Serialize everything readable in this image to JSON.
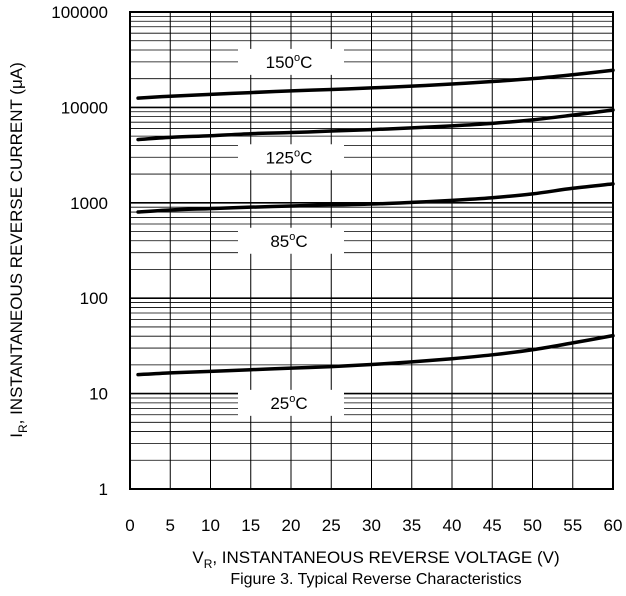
{
  "chart_data": {
    "type": "line",
    "title": "",
    "caption": "Figure 3. Typical Reverse Characteristics",
    "xlabel": {
      "main": "V",
      "sub": "R",
      "rest": ", INSTANTANEOUS REVERSE VOLTAGE (V)"
    },
    "ylabel": {
      "main": "I",
      "sub": "R",
      "rest": ", INSTANTANEOUS REVERSE CURRENT (μA)"
    },
    "xlim": [
      0,
      60
    ],
    "ylim": [
      1,
      100000
    ],
    "yscale": "log",
    "grid": true,
    "x_ticks": [
      0,
      5,
      10,
      15,
      20,
      25,
      30,
      35,
      40,
      45,
      50,
      55,
      60
    ],
    "y_ticks": [
      {
        "value": 1,
        "label": "1"
      },
      {
        "value": 10,
        "label": "10"
      },
      {
        "value": 100,
        "label": "100"
      },
      {
        "value": 1000,
        "label": "1000"
      },
      {
        "value": 10000,
        "label": "10000"
      },
      {
        "value": 100000,
        "label": "100000"
      }
    ],
    "series": [
      {
        "label": {
          "value": "150",
          "deg": "o",
          "unit": "C"
        },
        "label_at": {
          "x": 20,
          "y": 30000
        },
        "x": [
          1,
          5,
          10,
          15,
          20,
          25,
          30,
          35,
          40,
          45,
          50,
          55,
          60
        ],
        "y": [
          12500,
          13100,
          13700,
          14300,
          14900,
          15400,
          16000,
          16700,
          17600,
          18700,
          20000,
          22000,
          24500
        ]
      },
      {
        "label": {
          "value": "125",
          "deg": "o",
          "unit": "C"
        },
        "label_at": {
          "x": 20,
          "y": 3000
        },
        "x": [
          1,
          5,
          10,
          15,
          20,
          25,
          30,
          35,
          40,
          45,
          50,
          55,
          60
        ],
        "y": [
          4600,
          4850,
          5050,
          5300,
          5450,
          5650,
          5850,
          6100,
          6400,
          6800,
          7400,
          8300,
          9400
        ]
      },
      {
        "label": {
          "value": "85",
          "deg": "o",
          "unit": "C"
        },
        "label_at": {
          "x": 20,
          "y": 400
        },
        "x": [
          1,
          5,
          10,
          15,
          20,
          25,
          30,
          35,
          40,
          45,
          50,
          55,
          60
        ],
        "y": [
          800,
          840,
          870,
          900,
          925,
          950,
          970,
          1010,
          1060,
          1130,
          1240,
          1420,
          1580
        ]
      },
      {
        "label": {
          "value": "25",
          "deg": "o",
          "unit": "C"
        },
        "label_at": {
          "x": 20,
          "y": 8
        },
        "x": [
          1,
          5,
          10,
          15,
          20,
          25,
          30,
          35,
          40,
          45,
          50,
          55,
          60
        ],
        "y": [
          15.8,
          16.5,
          17.1,
          17.8,
          18.5,
          19.2,
          20.2,
          21.5,
          23.2,
          25.5,
          28.8,
          34,
          40.5
        ]
      }
    ]
  }
}
